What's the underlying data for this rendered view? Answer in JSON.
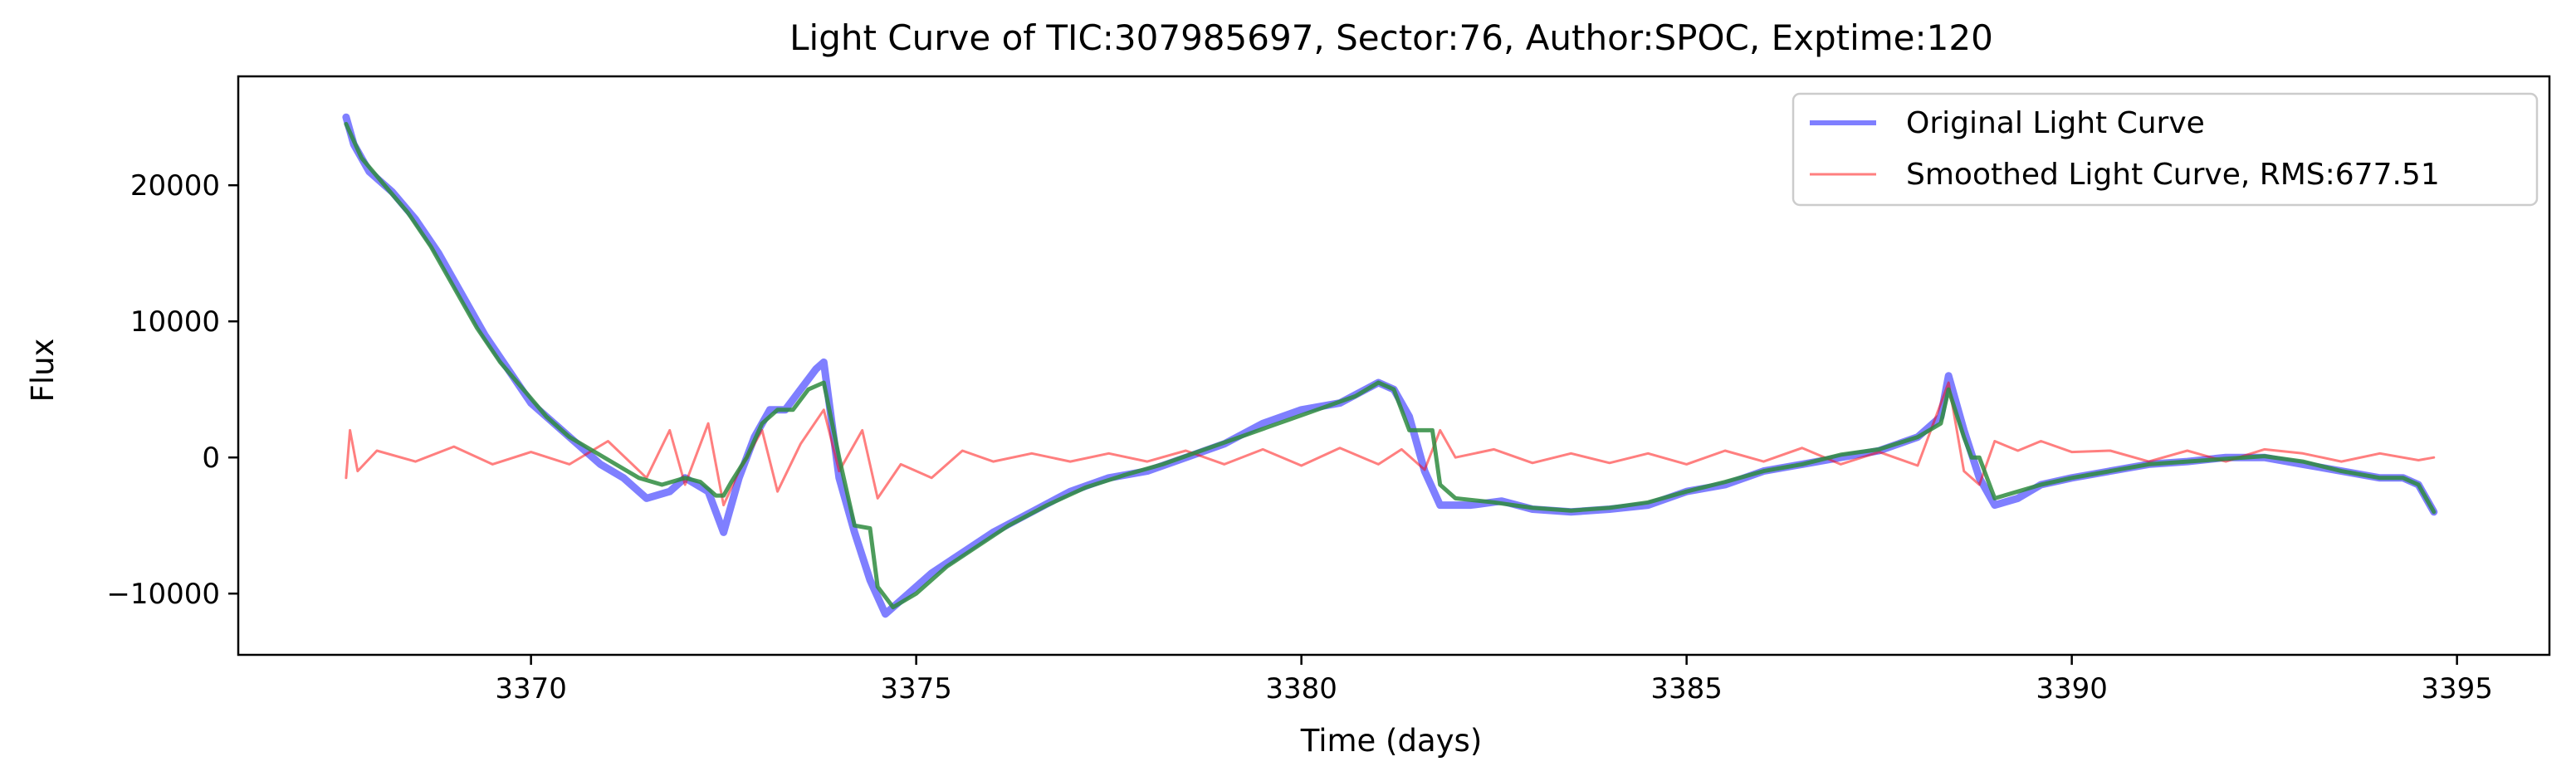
{
  "chart_data": {
    "type": "line",
    "title": "Light Curve of TIC:307985697, Sector:76, Author:SPOC, Exptime:120",
    "xlabel": "Time (days)",
    "ylabel": "Flux",
    "xlim": [
      3366.2,
      3396.2
    ],
    "ylim": [
      -14500,
      28000
    ],
    "xticks": [
      3370,
      3375,
      3380,
      3385,
      3390,
      3395
    ],
    "xtick_labels": [
      "3370",
      "3375",
      "3380",
      "3385",
      "3390",
      "3395"
    ],
    "yticks": [
      -10000,
      0,
      10000,
      20000
    ],
    "ytick_labels": [
      "−10000",
      "0",
      "10000",
      "20000"
    ],
    "grid": false,
    "legend_position": "top-right",
    "series": [
      {
        "name": "Original Light Curve",
        "color": "#0000ff",
        "opacity": 0.5,
        "points": [
          [
            3367.6,
            25000
          ],
          [
            3367.7,
            23000
          ],
          [
            3367.9,
            21000
          ],
          [
            3368.2,
            19500
          ],
          [
            3368.5,
            17500
          ],
          [
            3368.8,
            15000
          ],
          [
            3369.1,
            12000
          ],
          [
            3369.4,
            9000
          ],
          [
            3369.7,
            6500
          ],
          [
            3370.0,
            4000
          ],
          [
            3370.3,
            2500
          ],
          [
            3370.6,
            1000
          ],
          [
            3370.9,
            -500
          ],
          [
            3371.2,
            -1500
          ],
          [
            3371.5,
            -3000
          ],
          [
            3371.8,
            -2500
          ],
          [
            3372.0,
            -1500
          ],
          [
            3372.3,
            -2500
          ],
          [
            3372.5,
            -5500
          ],
          [
            3372.7,
            -1500
          ],
          [
            3372.9,
            1500
          ],
          [
            3373.1,
            3500
          ],
          [
            3373.3,
            3500
          ],
          [
            3373.5,
            5000
          ],
          [
            3373.7,
            6500
          ],
          [
            3373.8,
            7000
          ],
          [
            3374.0,
            -1500
          ],
          [
            3374.2,
            -5500
          ],
          [
            3374.4,
            -9000
          ],
          [
            3374.6,
            -11500
          ],
          [
            3374.8,
            -10500
          ],
          [
            3375.2,
            -8500
          ],
          [
            3375.6,
            -7000
          ],
          [
            3376.0,
            -5500
          ],
          [
            3376.5,
            -4000
          ],
          [
            3377.0,
            -2500
          ],
          [
            3377.5,
            -1500
          ],
          [
            3378.0,
            -1000
          ],
          [
            3378.5,
            0
          ],
          [
            3379.0,
            1000
          ],
          [
            3379.5,
            2500
          ],
          [
            3380.0,
            3500
          ],
          [
            3380.5,
            4000
          ],
          [
            3381.0,
            5500
          ],
          [
            3381.2,
            5000
          ],
          [
            3381.4,
            3000
          ],
          [
            3381.6,
            -1000
          ],
          [
            3381.8,
            -3500
          ],
          [
            3382.2,
            -3500
          ],
          [
            3382.6,
            -3200
          ],
          [
            3383.0,
            -3800
          ],
          [
            3383.5,
            -4000
          ],
          [
            3384.0,
            -3800
          ],
          [
            3384.5,
            -3500
          ],
          [
            3385.0,
            -2500
          ],
          [
            3385.5,
            -2000
          ],
          [
            3386.0,
            -1000
          ],
          [
            3386.5,
            -500
          ],
          [
            3387.0,
            0
          ],
          [
            3387.5,
            500
          ],
          [
            3388.0,
            1500
          ],
          [
            3388.3,
            3000
          ],
          [
            3388.4,
            6000
          ],
          [
            3388.6,
            2000
          ],
          [
            3388.8,
            -1500
          ],
          [
            3389.0,
            -3500
          ],
          [
            3389.3,
            -3000
          ],
          [
            3389.6,
            -2000
          ],
          [
            3390.0,
            -1500
          ],
          [
            3390.5,
            -1000
          ],
          [
            3391.0,
            -500
          ],
          [
            3391.5,
            -300
          ],
          [
            3392.0,
            0
          ],
          [
            3392.5,
            0
          ],
          [
            3393.0,
            -500
          ],
          [
            3393.5,
            -1000
          ],
          [
            3394.0,
            -1500
          ],
          [
            3394.3,
            -1500
          ],
          [
            3394.5,
            -2000
          ],
          [
            3394.7,
            -4000
          ]
        ]
      },
      {
        "name": "Smoothed Light Curve, RMS:677.51",
        "color": "#ff0000",
        "opacity": 0.5,
        "points": [
          [
            3367.6,
            -1500
          ],
          [
            3367.65,
            2000
          ],
          [
            3367.75,
            -1000
          ],
          [
            3368.0,
            500
          ],
          [
            3368.5,
            -300
          ],
          [
            3369.0,
            800
          ],
          [
            3369.5,
            -500
          ],
          [
            3370.0,
            400
          ],
          [
            3370.5,
            -500
          ],
          [
            3371.0,
            1200
          ],
          [
            3371.5,
            -1500
          ],
          [
            3371.8,
            2000
          ],
          [
            3372.0,
            -2000
          ],
          [
            3372.3,
            2500
          ],
          [
            3372.5,
            -3500
          ],
          [
            3372.7,
            -1000
          ],
          [
            3373.0,
            2000
          ],
          [
            3373.2,
            -2500
          ],
          [
            3373.5,
            1000
          ],
          [
            3373.8,
            3500
          ],
          [
            3374.0,
            -1000
          ],
          [
            3374.3,
            2000
          ],
          [
            3374.5,
            -3000
          ],
          [
            3374.8,
            -500
          ],
          [
            3375.2,
            -1500
          ],
          [
            3375.6,
            500
          ],
          [
            3376.0,
            -300
          ],
          [
            3376.5,
            300
          ],
          [
            3377.0,
            -300
          ],
          [
            3377.5,
            300
          ],
          [
            3378.0,
            -300
          ],
          [
            3378.5,
            500
          ],
          [
            3379.0,
            -500
          ],
          [
            3379.5,
            600
          ],
          [
            3380.0,
            -600
          ],
          [
            3380.5,
            700
          ],
          [
            3381.0,
            -500
          ],
          [
            3381.3,
            600
          ],
          [
            3381.6,
            -900
          ],
          [
            3381.8,
            2000
          ],
          [
            3382.0,
            0
          ],
          [
            3382.5,
            600
          ],
          [
            3383.0,
            -400
          ],
          [
            3383.5,
            300
          ],
          [
            3384.0,
            -400
          ],
          [
            3384.5,
            300
          ],
          [
            3385.0,
            -500
          ],
          [
            3385.5,
            500
          ],
          [
            3386.0,
            -300
          ],
          [
            3386.5,
            700
          ],
          [
            3387.0,
            -500
          ],
          [
            3387.5,
            400
          ],
          [
            3388.0,
            -600
          ],
          [
            3388.4,
            5500
          ],
          [
            3388.6,
            -1000
          ],
          [
            3388.8,
            -2000
          ],
          [
            3389.0,
            1200
          ],
          [
            3389.3,
            500
          ],
          [
            3389.6,
            1200
          ],
          [
            3390.0,
            400
          ],
          [
            3390.5,
            500
          ],
          [
            3391.0,
            -300
          ],
          [
            3391.5,
            500
          ],
          [
            3392.0,
            -300
          ],
          [
            3392.5,
            600
          ],
          [
            3393.0,
            300
          ],
          [
            3393.5,
            -300
          ],
          [
            3394.0,
            300
          ],
          [
            3394.5,
            -200
          ],
          [
            3394.7,
            0
          ]
        ]
      },
      {
        "color": "#2e8b3e",
        "opacity": 0.85,
        "points": [
          [
            3367.6,
            24500
          ],
          [
            3367.8,
            22000
          ],
          [
            3368.1,
            20000
          ],
          [
            3368.4,
            18000
          ],
          [
            3368.7,
            15500
          ],
          [
            3369.0,
            12500
          ],
          [
            3369.3,
            9500
          ],
          [
            3369.6,
            7000
          ],
          [
            3369.9,
            5000
          ],
          [
            3370.2,
            3000
          ],
          [
            3370.5,
            1500
          ],
          [
            3370.8,
            500
          ],
          [
            3371.1,
            -500
          ],
          [
            3371.4,
            -1500
          ],
          [
            3371.7,
            -2000
          ],
          [
            3372.0,
            -1500
          ],
          [
            3372.2,
            -1800
          ],
          [
            3372.4,
            -2800
          ],
          [
            3372.5,
            -2800
          ],
          [
            3372.6,
            -1800
          ],
          [
            3372.8,
            0
          ],
          [
            3373.0,
            2500
          ],
          [
            3373.2,
            3500
          ],
          [
            3373.4,
            3500
          ],
          [
            3373.6,
            5000
          ],
          [
            3373.8,
            5500
          ],
          [
            3374.0,
            0
          ],
          [
            3374.2,
            -5000
          ],
          [
            3374.4,
            -5200
          ],
          [
            3374.5,
            -9500
          ],
          [
            3374.7,
            -11000
          ],
          [
            3375.0,
            -10000
          ],
          [
            3375.4,
            -8000
          ],
          [
            3375.8,
            -6500
          ],
          [
            3376.2,
            -5000
          ],
          [
            3376.7,
            -3500
          ],
          [
            3377.2,
            -2200
          ],
          [
            3377.7,
            -1300
          ],
          [
            3378.2,
            -500
          ],
          [
            3378.7,
            500
          ],
          [
            3379.2,
            1500
          ],
          [
            3379.7,
            2500
          ],
          [
            3380.2,
            3500
          ],
          [
            3380.7,
            4500
          ],
          [
            3381.0,
            5500
          ],
          [
            3381.2,
            5000
          ],
          [
            3381.4,
            2000
          ],
          [
            3381.5,
            2000
          ],
          [
            3381.7,
            2000
          ],
          [
            3381.8,
            -2000
          ],
          [
            3382.0,
            -3000
          ],
          [
            3382.5,
            -3300
          ],
          [
            3383.0,
            -3700
          ],
          [
            3383.5,
            -3900
          ],
          [
            3384.0,
            -3700
          ],
          [
            3384.5,
            -3300
          ],
          [
            3385.0,
            -2500
          ],
          [
            3385.5,
            -1800
          ],
          [
            3386.0,
            -1000
          ],
          [
            3386.5,
            -500
          ],
          [
            3387.0,
            200
          ],
          [
            3387.5,
            600
          ],
          [
            3388.0,
            1500
          ],
          [
            3388.3,
            2500
          ],
          [
            3388.4,
            5000
          ],
          [
            3388.6,
            1500
          ],
          [
            3388.7,
            0
          ],
          [
            3388.8,
            0
          ],
          [
            3389.0,
            -3000
          ],
          [
            3389.3,
            -2500
          ],
          [
            3389.6,
            -2000
          ],
          [
            3390.0,
            -1500
          ],
          [
            3390.5,
            -1000
          ],
          [
            3391.0,
            -500
          ],
          [
            3391.5,
            -300
          ],
          [
            3392.0,
            -100
          ],
          [
            3392.5,
            100
          ],
          [
            3393.0,
            -300
          ],
          [
            3393.5,
            -1000
          ],
          [
            3394.0,
            -1500
          ],
          [
            3394.3,
            -1500
          ],
          [
            3394.5,
            -2000
          ],
          [
            3394.7,
            -4000
          ]
        ]
      }
    ]
  }
}
